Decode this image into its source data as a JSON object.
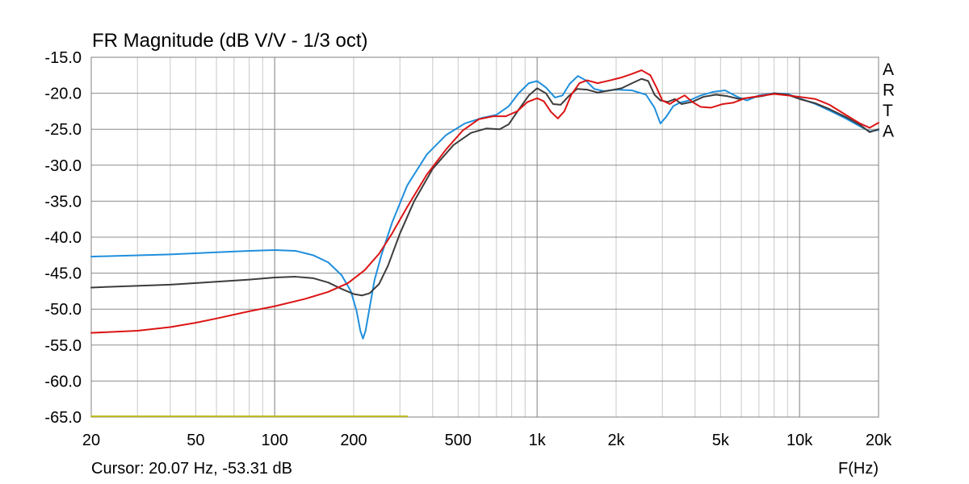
{
  "chart_data": {
    "type": "line",
    "title": "FR Magnitude (dB V/V - 1/3 oct)",
    "xlabel": "F(Hz)",
    "ylabel": "",
    "x_scale": "log",
    "xlim": [
      20,
      20000
    ],
    "ylim": [
      -65,
      -15
    ],
    "grid": true,
    "x_ticks": [
      20,
      50,
      100,
      200,
      500,
      1000,
      2000,
      5000,
      10000,
      20000
    ],
    "x_tick_labels": [
      "20",
      "50",
      "100",
      "200",
      "500",
      "1k",
      "2k",
      "5k",
      "10k",
      "20k"
    ],
    "y_ticks": [
      -15,
      -20,
      -25,
      -30,
      -35,
      -40,
      -45,
      -50,
      -55,
      -60,
      -65
    ],
    "y_tick_labels": [
      "-15.0",
      "-20.0",
      "-25.0",
      "-30.0",
      "-35.0",
      "-40.0",
      "-45.0",
      "-50.0",
      "-55.0",
      "-60.0",
      "-65.0"
    ],
    "brand_letters": [
      "A",
      "R",
      "T",
      "A"
    ],
    "cursor_readout": "Cursor: 20.07 Hz, -53.31 dB",
    "series": [
      {
        "color": "#1f8fdc",
        "points": [
          [
            20,
            -42.7
          ],
          [
            40,
            -42.4
          ],
          [
            60,
            -42.1
          ],
          [
            80,
            -41.9
          ],
          [
            100,
            -41.8
          ],
          [
            120,
            -41.9
          ],
          [
            140,
            -42.5
          ],
          [
            160,
            -43.5
          ],
          [
            180,
            -45.3
          ],
          [
            195,
            -47.5
          ],
          [
            205,
            -50.2
          ],
          [
            212,
            -53.0
          ],
          [
            217,
            -54.1
          ],
          [
            222,
            -53.0
          ],
          [
            230,
            -49.8
          ],
          [
            240,
            -46.0
          ],
          [
            255,
            -42.5
          ],
          [
            280,
            -38.0
          ],
          [
            320,
            -32.8
          ],
          [
            380,
            -28.5
          ],
          [
            450,
            -25.8
          ],
          [
            530,
            -24.2
          ],
          [
            620,
            -23.4
          ],
          [
            700,
            -23.0
          ],
          [
            780,
            -21.8
          ],
          [
            850,
            -20.0
          ],
          [
            930,
            -18.6
          ],
          [
            1000,
            -18.3
          ],
          [
            1080,
            -19.2
          ],
          [
            1170,
            -20.6
          ],
          [
            1250,
            -20.3
          ],
          [
            1330,
            -18.7
          ],
          [
            1430,
            -17.6
          ],
          [
            1530,
            -18.2
          ],
          [
            1650,
            -19.4
          ],
          [
            1800,
            -19.7
          ],
          [
            2000,
            -19.5
          ],
          [
            2300,
            -19.6
          ],
          [
            2600,
            -20.2
          ],
          [
            2800,
            -22.0
          ],
          [
            2950,
            -24.2
          ],
          [
            3100,
            -23.3
          ],
          [
            3300,
            -21.8
          ],
          [
            3500,
            -21.3
          ],
          [
            3800,
            -21.0
          ],
          [
            4200,
            -20.3
          ],
          [
            4700,
            -19.8
          ],
          [
            5200,
            -19.6
          ],
          [
            5800,
            -20.5
          ],
          [
            6300,
            -21.0
          ],
          [
            7000,
            -20.3
          ],
          [
            8000,
            -20.0
          ],
          [
            9000,
            -20.1
          ],
          [
            10000,
            -20.7
          ],
          [
            11500,
            -21.5
          ],
          [
            13000,
            -22.4
          ],
          [
            15000,
            -23.5
          ],
          [
            17000,
            -24.6
          ],
          [
            18500,
            -25.3
          ],
          [
            20000,
            -25.1
          ]
        ]
      },
      {
        "color": "#3c3c3c",
        "points": [
          [
            20,
            -47.0
          ],
          [
            40,
            -46.6
          ],
          [
            60,
            -46.2
          ],
          [
            80,
            -45.9
          ],
          [
            100,
            -45.6
          ],
          [
            120,
            -45.5
          ],
          [
            140,
            -45.7
          ],
          [
            160,
            -46.3
          ],
          [
            180,
            -47.2
          ],
          [
            200,
            -47.9
          ],
          [
            215,
            -48.1
          ],
          [
            230,
            -47.8
          ],
          [
            250,
            -46.5
          ],
          [
            270,
            -44.0
          ],
          [
            300,
            -39.5
          ],
          [
            340,
            -35.0
          ],
          [
            400,
            -30.5
          ],
          [
            480,
            -27.2
          ],
          [
            560,
            -25.5
          ],
          [
            640,
            -24.9
          ],
          [
            720,
            -25.0
          ],
          [
            780,
            -24.3
          ],
          [
            850,
            -22.3
          ],
          [
            930,
            -20.3
          ],
          [
            1000,
            -19.3
          ],
          [
            1080,
            -20.0
          ],
          [
            1150,
            -21.5
          ],
          [
            1230,
            -21.6
          ],
          [
            1320,
            -20.4
          ],
          [
            1420,
            -19.4
          ],
          [
            1550,
            -19.5
          ],
          [
            1700,
            -19.9
          ],
          [
            1900,
            -19.6
          ],
          [
            2100,
            -19.3
          ],
          [
            2300,
            -18.6
          ],
          [
            2500,
            -18.0
          ],
          [
            2650,
            -18.3
          ],
          [
            2800,
            -20.2
          ],
          [
            2950,
            -21.0
          ],
          [
            3150,
            -21.2
          ],
          [
            3350,
            -20.8
          ],
          [
            3550,
            -21.5
          ],
          [
            3900,
            -21.2
          ],
          [
            4300,
            -20.5
          ],
          [
            4800,
            -20.2
          ],
          [
            5300,
            -20.4
          ],
          [
            5900,
            -20.8
          ],
          [
            6500,
            -20.6
          ],
          [
            7200,
            -20.4
          ],
          [
            8000,
            -20.0
          ],
          [
            9000,
            -20.2
          ],
          [
            10000,
            -20.8
          ],
          [
            11500,
            -21.4
          ],
          [
            13000,
            -22.2
          ],
          [
            15000,
            -23.3
          ],
          [
            17000,
            -24.4
          ],
          [
            18500,
            -25.4
          ],
          [
            20000,
            -25.0
          ]
        ]
      },
      {
        "color": "#dc1414",
        "points": [
          [
            20,
            -53.3
          ],
          [
            30,
            -53.0
          ],
          [
            40,
            -52.5
          ],
          [
            50,
            -51.9
          ],
          [
            60,
            -51.3
          ],
          [
            80,
            -50.3
          ],
          [
            100,
            -49.6
          ],
          [
            130,
            -48.6
          ],
          [
            160,
            -47.6
          ],
          [
            190,
            -46.4
          ],
          [
            220,
            -44.6
          ],
          [
            250,
            -42.3
          ],
          [
            280,
            -39.5
          ],
          [
            320,
            -35.8
          ],
          [
            380,
            -31.3
          ],
          [
            450,
            -27.8
          ],
          [
            520,
            -25.2
          ],
          [
            600,
            -23.6
          ],
          [
            680,
            -23.2
          ],
          [
            760,
            -23.2
          ],
          [
            840,
            -22.5
          ],
          [
            920,
            -21.2
          ],
          [
            1000,
            -20.7
          ],
          [
            1060,
            -21.1
          ],
          [
            1130,
            -22.6
          ],
          [
            1200,
            -23.5
          ],
          [
            1270,
            -22.5
          ],
          [
            1350,
            -20.2
          ],
          [
            1450,
            -18.6
          ],
          [
            1550,
            -18.2
          ],
          [
            1700,
            -18.6
          ],
          [
            1900,
            -18.2
          ],
          [
            2100,
            -17.8
          ],
          [
            2300,
            -17.3
          ],
          [
            2500,
            -16.8
          ],
          [
            2700,
            -17.5
          ],
          [
            2850,
            -19.2
          ],
          [
            3000,
            -21.0
          ],
          [
            3200,
            -21.5
          ],
          [
            3400,
            -20.9
          ],
          [
            3650,
            -20.3
          ],
          [
            3900,
            -21.2
          ],
          [
            4200,
            -21.9
          ],
          [
            4600,
            -22.0
          ],
          [
            5100,
            -21.5
          ],
          [
            5600,
            -21.3
          ],
          [
            6200,
            -20.7
          ],
          [
            7000,
            -20.4
          ],
          [
            8000,
            -20.1
          ],
          [
            9000,
            -20.3
          ],
          [
            10000,
            -20.5
          ],
          [
            11500,
            -20.8
          ],
          [
            13000,
            -21.6
          ],
          [
            15000,
            -23.0
          ],
          [
            17000,
            -24.2
          ],
          [
            18500,
            -24.8
          ],
          [
            20000,
            -24.1
          ]
        ]
      },
      {
        "color": "#b9b919",
        "points": [
          [
            20,
            -64.9
          ],
          [
            320,
            -64.9
          ]
        ]
      }
    ]
  }
}
